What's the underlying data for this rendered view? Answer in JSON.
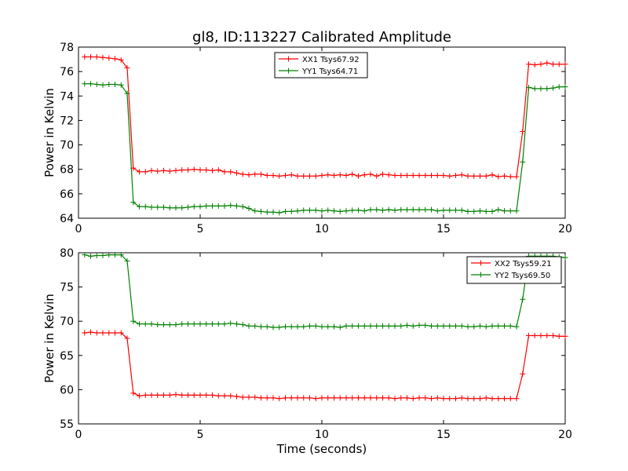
{
  "title": "gl8, ID:113227 Calibrated Amplitude",
  "chart_data": [
    {
      "type": "line",
      "ylabel": "Power in Kelvin",
      "xlabel": "",
      "xlim": [
        0,
        20
      ],
      "ylim": [
        64,
        78
      ],
      "xticks": [
        0,
        5,
        10,
        15,
        20
      ],
      "yticks": [
        64,
        66,
        68,
        70,
        72,
        74,
        76,
        78
      ],
      "legend_position": "top-center",
      "series": [
        {
          "name": "XX1 Tsys67.92",
          "color": "#ff0000",
          "x": [
            0.25,
            0.5,
            0.75,
            1.0,
            1.25,
            1.5,
            1.75,
            2.0,
            2.25,
            2.5,
            2.75,
            3.0,
            3.25,
            3.5,
            3.75,
            4.0,
            4.25,
            4.5,
            4.75,
            5.0,
            5.25,
            5.5,
            5.75,
            6.0,
            6.25,
            6.5,
            6.75,
            7.0,
            7.25,
            7.5,
            7.75,
            8.0,
            8.25,
            8.5,
            8.75,
            9.0,
            9.25,
            9.5,
            9.75,
            10.0,
            10.25,
            10.5,
            10.75,
            11.0,
            11.25,
            11.5,
            11.75,
            12.0,
            12.25,
            12.5,
            12.75,
            13.0,
            13.25,
            13.5,
            13.75,
            14.0,
            14.25,
            14.5,
            14.75,
            15.0,
            15.25,
            15.5,
            15.75,
            16.0,
            16.25,
            16.5,
            16.75,
            17.0,
            17.25,
            17.5,
            17.75,
            18.0,
            18.25,
            18.5,
            18.75,
            19.0,
            19.25,
            19.5,
            19.75,
            20.0
          ],
          "y": [
            77.2,
            77.2,
            77.2,
            77.15,
            77.1,
            77.05,
            76.95,
            76.3,
            68.1,
            67.8,
            67.8,
            67.9,
            67.85,
            67.9,
            67.85,
            67.9,
            67.95,
            67.95,
            68.0,
            67.95,
            67.95,
            67.9,
            67.95,
            67.8,
            67.8,
            67.7,
            67.6,
            67.55,
            67.6,
            67.6,
            67.5,
            67.5,
            67.45,
            67.5,
            67.55,
            67.45,
            67.45,
            67.45,
            67.45,
            67.5,
            67.55,
            67.5,
            67.55,
            67.5,
            67.6,
            67.45,
            67.55,
            67.6,
            67.45,
            67.6,
            67.55,
            67.5,
            67.5,
            67.5,
            67.5,
            67.5,
            67.5,
            67.5,
            67.5,
            67.5,
            67.45,
            67.5,
            67.55,
            67.45,
            67.45,
            67.45,
            67.45,
            67.55,
            67.4,
            67.45,
            67.4,
            67.4,
            71.1,
            76.6,
            76.55,
            76.6,
            76.7,
            76.6,
            76.6,
            76.6
          ]
        },
        {
          "name": "YY1 Tsys64.71",
          "color": "#008000",
          "x": [
            0.25,
            0.5,
            0.75,
            1.0,
            1.25,
            1.5,
            1.75,
            2.0,
            2.25,
            2.5,
            2.75,
            3.0,
            3.25,
            3.5,
            3.75,
            4.0,
            4.25,
            4.5,
            4.75,
            5.0,
            5.25,
            5.5,
            5.75,
            6.0,
            6.25,
            6.5,
            6.75,
            7.0,
            7.25,
            7.5,
            7.75,
            8.0,
            8.25,
            8.5,
            8.75,
            9.0,
            9.25,
            9.5,
            9.75,
            10.0,
            10.25,
            10.5,
            10.75,
            11.0,
            11.25,
            11.5,
            11.75,
            12.0,
            12.25,
            12.5,
            12.75,
            13.0,
            13.25,
            13.5,
            13.75,
            14.0,
            14.25,
            14.5,
            14.75,
            15.0,
            15.25,
            15.5,
            15.75,
            16.0,
            16.25,
            16.5,
            16.75,
            17.0,
            17.25,
            17.5,
            17.75,
            18.0,
            18.25,
            18.5,
            18.75,
            19.0,
            19.25,
            19.5,
            19.75,
            20.0
          ],
          "y": [
            75.0,
            75.0,
            74.95,
            74.9,
            74.95,
            74.95,
            74.9,
            74.2,
            65.3,
            64.95,
            64.95,
            64.9,
            64.9,
            64.9,
            64.85,
            64.85,
            64.85,
            64.9,
            64.95,
            64.95,
            65.0,
            65.0,
            65.0,
            65.0,
            65.05,
            65.0,
            64.95,
            64.8,
            64.6,
            64.55,
            64.5,
            64.5,
            64.45,
            64.55,
            64.55,
            64.6,
            64.65,
            64.65,
            64.65,
            64.6,
            64.65,
            64.6,
            64.55,
            64.6,
            64.65,
            64.65,
            64.6,
            64.7,
            64.7,
            64.65,
            64.7,
            64.65,
            64.7,
            64.7,
            64.7,
            64.7,
            64.7,
            64.7,
            64.6,
            64.65,
            64.65,
            64.65,
            64.65,
            64.55,
            64.55,
            64.6,
            64.55,
            64.55,
            64.7,
            64.6,
            64.6,
            64.6,
            68.6,
            74.7,
            74.6,
            74.6,
            74.6,
            74.65,
            74.75,
            74.75
          ]
        }
      ]
    },
    {
      "type": "line",
      "ylabel": "Power in Kelvin",
      "xlabel": "Time (seconds)",
      "xlim": [
        0,
        20
      ],
      "ylim": [
        55,
        80
      ],
      "xticks": [
        0,
        5,
        10,
        15,
        20
      ],
      "yticks": [
        55,
        60,
        65,
        70,
        75,
        80
      ],
      "legend_position": "top-right",
      "series": [
        {
          "name": "XX2 Tsys59.21",
          "color": "#ff0000",
          "x": [
            0.25,
            0.5,
            0.75,
            1.0,
            1.25,
            1.5,
            1.75,
            2.0,
            2.25,
            2.5,
            2.75,
            3.0,
            3.25,
            3.5,
            3.75,
            4.0,
            4.25,
            4.5,
            4.75,
            5.0,
            5.25,
            5.5,
            5.75,
            6.0,
            6.25,
            6.5,
            6.75,
            7.0,
            7.25,
            7.5,
            7.75,
            8.0,
            8.25,
            8.5,
            8.75,
            9.0,
            9.25,
            9.5,
            9.75,
            10.0,
            10.25,
            10.5,
            10.75,
            11.0,
            11.25,
            11.5,
            11.75,
            12.0,
            12.25,
            12.5,
            12.75,
            13.0,
            13.25,
            13.5,
            13.75,
            14.0,
            14.25,
            14.5,
            14.75,
            15.0,
            15.25,
            15.5,
            15.75,
            16.0,
            16.25,
            16.5,
            16.75,
            17.0,
            17.25,
            17.5,
            17.75,
            18.0,
            18.25,
            18.5,
            18.75,
            19.0,
            19.25,
            19.5,
            19.75,
            20.0
          ],
          "y": [
            68.3,
            68.4,
            68.3,
            68.3,
            68.3,
            68.3,
            68.3,
            67.5,
            59.5,
            59.1,
            59.2,
            59.2,
            59.2,
            59.2,
            59.2,
            59.3,
            59.2,
            59.2,
            59.2,
            59.2,
            59.2,
            59.2,
            59.1,
            59.1,
            59.1,
            59.0,
            58.9,
            58.9,
            58.9,
            58.8,
            58.8,
            58.8,
            58.7,
            58.8,
            58.8,
            58.8,
            58.8,
            58.8,
            58.7,
            58.8,
            58.8,
            58.8,
            58.8,
            58.8,
            58.8,
            58.8,
            58.8,
            58.8,
            58.8,
            58.8,
            58.8,
            58.7,
            58.8,
            58.8,
            58.7,
            58.8,
            58.8,
            58.7,
            58.8,
            58.7,
            58.7,
            58.7,
            58.8,
            58.7,
            58.7,
            58.7,
            58.8,
            58.7,
            58.7,
            58.7,
            58.7,
            58.7,
            62.3,
            67.9,
            67.9,
            67.9,
            67.9,
            67.9,
            67.8,
            67.8
          ]
        },
        {
          "name": "YY2 Tsys69.50",
          "color": "#008000",
          "x": [
            0.25,
            0.5,
            0.75,
            1.0,
            1.25,
            1.5,
            1.75,
            2.0,
            2.25,
            2.5,
            2.75,
            3.0,
            3.25,
            3.5,
            3.75,
            4.0,
            4.25,
            4.5,
            4.75,
            5.0,
            5.25,
            5.5,
            5.75,
            6.0,
            6.25,
            6.5,
            6.75,
            7.0,
            7.25,
            7.5,
            7.75,
            8.0,
            8.25,
            8.5,
            8.75,
            9.0,
            9.25,
            9.5,
            9.75,
            10.0,
            10.25,
            10.5,
            10.75,
            11.0,
            11.25,
            11.5,
            11.75,
            12.0,
            12.25,
            12.5,
            12.75,
            13.0,
            13.25,
            13.5,
            13.75,
            14.0,
            14.25,
            14.5,
            14.75,
            15.0,
            15.25,
            15.5,
            15.75,
            16.0,
            16.25,
            16.5,
            16.75,
            17.0,
            17.25,
            17.5,
            17.75,
            18.0,
            18.25,
            18.5,
            18.75,
            19.0,
            19.25,
            19.5,
            19.75,
            20.0
          ],
          "y": [
            79.7,
            79.5,
            79.6,
            79.6,
            79.7,
            79.7,
            79.7,
            78.8,
            70.0,
            69.6,
            69.6,
            69.6,
            69.5,
            69.5,
            69.5,
            69.5,
            69.6,
            69.6,
            69.6,
            69.6,
            69.6,
            69.6,
            69.6,
            69.6,
            69.7,
            69.6,
            69.5,
            69.3,
            69.3,
            69.2,
            69.2,
            69.1,
            69.1,
            69.2,
            69.2,
            69.2,
            69.2,
            69.3,
            69.3,
            69.2,
            69.2,
            69.2,
            69.1,
            69.3,
            69.3,
            69.3,
            69.3,
            69.3,
            69.3,
            69.3,
            69.3,
            69.3,
            69.3,
            69.4,
            69.3,
            69.4,
            69.4,
            69.3,
            69.3,
            69.3,
            69.3,
            69.3,
            69.3,
            69.2,
            69.2,
            69.3,
            69.2,
            69.3,
            69.3,
            69.3,
            69.3,
            69.2,
            73.2,
            79.5,
            79.5,
            79.5,
            79.5,
            79.5,
            79.4,
            79.3
          ]
        }
      ]
    }
  ]
}
